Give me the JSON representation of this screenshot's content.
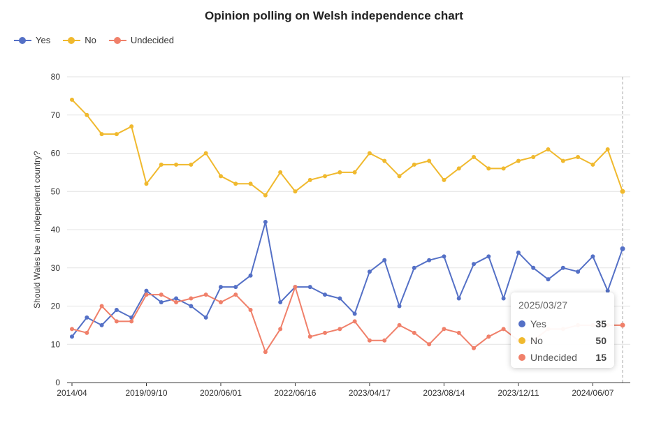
{
  "title": "Opinion polling on Welsh independence chart",
  "chart_data": {
    "type": "line",
    "title": "Opinion polling on Welsh independence chart",
    "ylabel": "Should Wales be an independent country?",
    "xlabel": "",
    "ylim": [
      0,
      80
    ],
    "y_ticks": [
      "0",
      "10",
      "20",
      "30",
      "40",
      "50",
      "60",
      "70",
      "80"
    ],
    "x_tick_labels": [
      "2014/04",
      "2019/09/10",
      "2020/06/01",
      "2022/06/16",
      "2023/04/17",
      "2023/08/14",
      "2023/12/11",
      "2024/06/07"
    ],
    "x_tick_indices": [
      0,
      5,
      10,
      15,
      20,
      25,
      30,
      35
    ],
    "legend_position": "top-left",
    "series": [
      {
        "name": "Yes",
        "color": "#5470c6",
        "values": [
          12,
          17,
          15,
          19,
          17,
          24,
          21,
          22,
          20,
          17,
          25,
          25,
          28,
          42,
          21,
          25,
          25,
          23,
          22,
          18,
          29,
          32,
          20,
          30,
          32,
          33,
          22,
          31,
          33,
          22,
          34,
          30,
          27,
          30,
          29,
          33,
          24,
          35
        ]
      },
      {
        "name": "No",
        "color": "#f0b92e",
        "values": [
          74,
          70,
          65,
          65,
          67,
          52,
          57,
          57,
          57,
          60,
          54,
          52,
          52,
          49,
          55,
          50,
          53,
          54,
          55,
          55,
          60,
          58,
          54,
          57,
          58,
          53,
          56,
          59,
          56,
          56,
          58,
          59,
          61,
          58,
          59,
          57,
          61,
          50
        ]
      },
      {
        "name": "Undecided",
        "color": "#f0806a",
        "values": [
          14,
          13,
          20,
          16,
          16,
          23,
          23,
          21,
          22,
          23,
          21,
          23,
          19,
          8,
          14,
          25,
          12,
          13,
          14,
          16,
          11,
          11,
          15,
          13,
          10,
          14,
          13,
          9,
          12,
          14,
          11,
          11,
          14,
          14,
          15,
          15,
          15,
          15
        ]
      }
    ]
  },
  "legend": {
    "items": [
      {
        "label": "Yes",
        "color": "#5470c6"
      },
      {
        "label": "No",
        "color": "#f0b92e"
      },
      {
        "label": "Undecided",
        "color": "#f0806a"
      }
    ]
  },
  "tooltip": {
    "date": "2025/03/27",
    "rows": [
      {
        "name": "Yes",
        "value": "35",
        "color": "#5470c6"
      },
      {
        "name": "No",
        "value": "50",
        "color": "#f0b92e"
      },
      {
        "name": "Undecided",
        "value": "15",
        "color": "#f0806a"
      }
    ]
  }
}
